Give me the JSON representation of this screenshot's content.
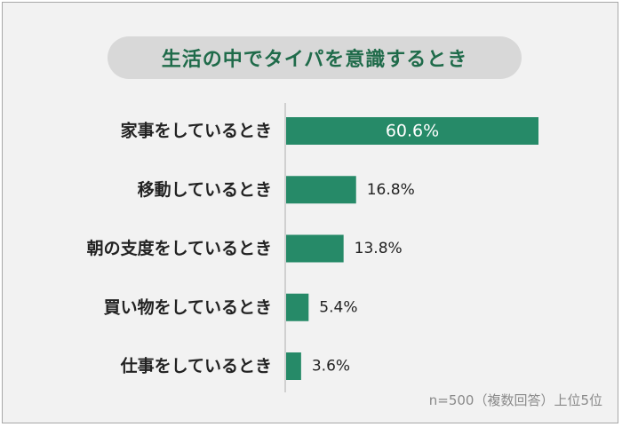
{
  "chart_data": {
    "type": "bar",
    "orientation": "horizontal",
    "title": "生活の中でタイパを意識するとき",
    "categories": [
      "家事をしているとき",
      "移動しているとき",
      "朝の支度をしているとき",
      "買い物をしているとき",
      "仕事をしているとき"
    ],
    "values": [
      60.6,
      16.8,
      13.8,
      5.4,
      3.6
    ],
    "value_labels": [
      "60.6%",
      "16.8%",
      "13.8%",
      "5.4%",
      "3.6%"
    ],
    "unit": "%",
    "xlim": [
      0,
      60.6
    ],
    "grid": false,
    "bar_color": "#268a68",
    "title_color": "#1f6b4a",
    "note": "n=500（複数回答）上位5位"
  }
}
